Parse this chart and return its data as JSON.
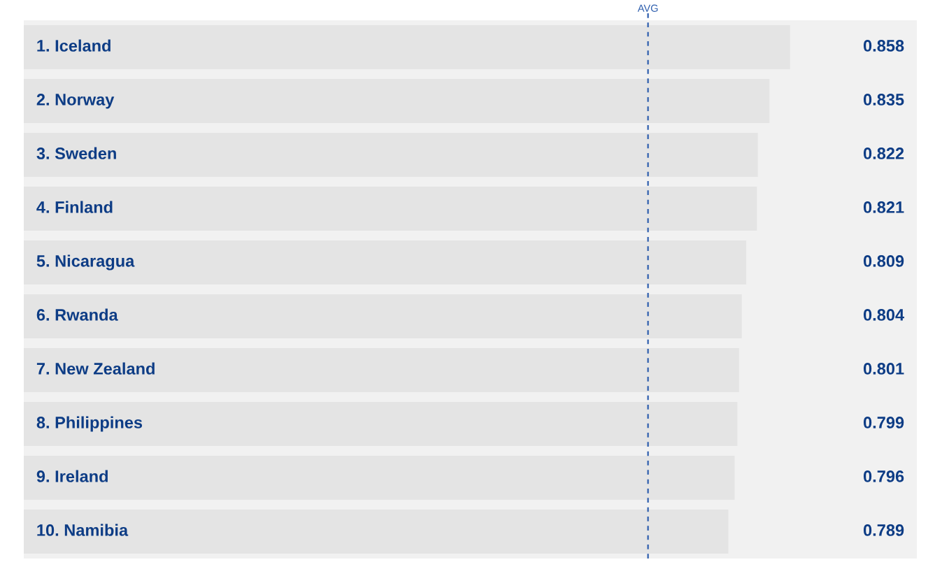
{
  "chart_data": {
    "type": "bar",
    "orientation": "horizontal",
    "categories": [
      "1. Iceland",
      "2. Norway",
      "3. Sweden",
      "4. Finland",
      "5. Nicaragua",
      "6. Rwanda",
      "7. New Zealand",
      "8. Philippines",
      "9. Ireland",
      "10. Namibia"
    ],
    "values": [
      0.858,
      0.835,
      0.822,
      0.821,
      0.809,
      0.804,
      0.801,
      0.799,
      0.796,
      0.789
    ],
    "color": "#e4e4e4",
    "xlim": [
      0,
      1
    ],
    "data_labels": true,
    "ref_lines": [
      {
        "axis": "x",
        "value": 0.699,
        "label": "AVG",
        "color": "#2f5fae",
        "line_style": "dashed"
      }
    ]
  }
}
